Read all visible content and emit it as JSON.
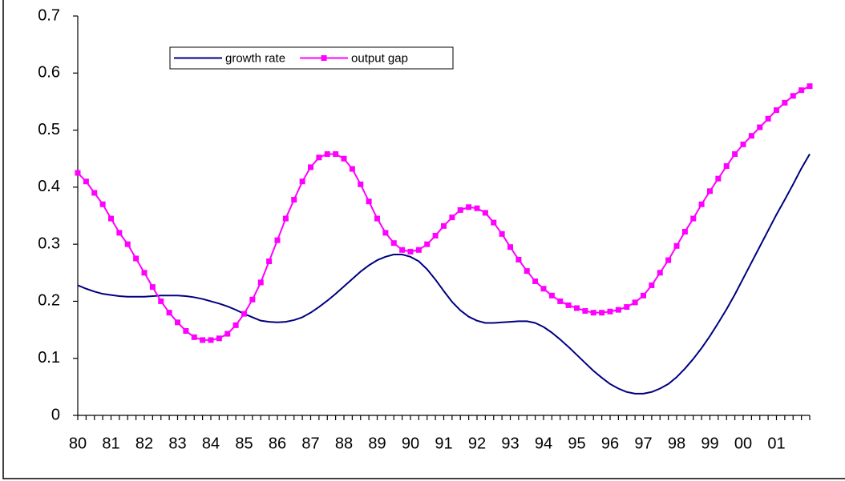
{
  "chart_data": {
    "type": "line",
    "categories": [
      "80",
      null,
      null,
      null,
      "81",
      null,
      null,
      null,
      "82",
      null,
      null,
      null,
      "83",
      null,
      null,
      null,
      "84",
      null,
      null,
      null,
      "85",
      null,
      null,
      null,
      "86",
      null,
      null,
      null,
      "87",
      null,
      null,
      null,
      "88",
      null,
      null,
      null,
      "89",
      null,
      null,
      null,
      "90",
      null,
      null,
      null,
      "91",
      null,
      null,
      null,
      "92",
      null,
      null,
      null,
      "93",
      null,
      null,
      null,
      "94",
      null,
      null,
      null,
      "95",
      null,
      null,
      null,
      "96",
      null,
      null,
      null,
      "97",
      null,
      null,
      null,
      "98",
      null,
      null,
      null,
      "99",
      null,
      null,
      null,
      "00",
      null,
      null,
      null,
      "01",
      null,
      null,
      null,
      null
    ],
    "series": [
      {
        "name": "growth rate",
        "color": "#000080",
        "marker": "none",
        "values": [
          0.228,
          0.222,
          0.217,
          0.213,
          0.211,
          0.209,
          0.208,
          0.208,
          0.208,
          0.209,
          0.21,
          0.21,
          0.21,
          0.209,
          0.207,
          0.204,
          0.2,
          0.196,
          0.191,
          0.185,
          0.178,
          0.172,
          0.166,
          0.164,
          0.163,
          0.164,
          0.167,
          0.172,
          0.18,
          0.19,
          0.201,
          0.213,
          0.226,
          0.239,
          0.252,
          0.263,
          0.272,
          0.278,
          0.282,
          0.282,
          0.278,
          0.27,
          0.256,
          0.238,
          0.218,
          0.199,
          0.184,
          0.173,
          0.166,
          0.162,
          0.162,
          0.163,
          0.164,
          0.165,
          0.165,
          0.162,
          0.155,
          0.145,
          0.133,
          0.12,
          0.106,
          0.092,
          0.078,
          0.066,
          0.055,
          0.047,
          0.041,
          0.038,
          0.038,
          0.041,
          0.047,
          0.055,
          0.067,
          0.082,
          0.099,
          0.118,
          0.139,
          0.162,
          0.186,
          0.212,
          0.24,
          0.268,
          0.296,
          0.324,
          0.352,
          0.378,
          0.405,
          0.433,
          0.458
        ]
      },
      {
        "name": "output gap",
        "color": "#ff00ff",
        "marker": "square",
        "values": [
          0.425,
          0.41,
          0.39,
          0.37,
          0.345,
          0.32,
          0.3,
          0.275,
          0.25,
          0.225,
          0.2,
          0.18,
          0.163,
          0.148,
          0.137,
          0.132,
          0.132,
          0.135,
          0.143,
          0.158,
          0.178,
          0.203,
          0.233,
          0.27,
          0.307,
          0.345,
          0.378,
          0.41,
          0.435,
          0.452,
          0.458,
          0.458,
          0.45,
          0.432,
          0.405,
          0.375,
          0.345,
          0.32,
          0.302,
          0.29,
          0.287,
          0.29,
          0.3,
          0.315,
          0.332,
          0.347,
          0.36,
          0.365,
          0.363,
          0.355,
          0.338,
          0.318,
          0.295,
          0.273,
          0.253,
          0.235,
          0.222,
          0.21,
          0.2,
          0.193,
          0.188,
          0.183,
          0.18,
          0.18,
          0.182,
          0.185,
          0.19,
          0.198,
          0.21,
          0.228,
          0.25,
          0.272,
          0.297,
          0.322,
          0.345,
          0.37,
          0.393,
          0.415,
          0.437,
          0.458,
          0.475,
          0.49,
          0.505,
          0.52,
          0.535,
          0.548,
          0.56,
          0.57,
          0.577
        ]
      }
    ],
    "ylim": [
      0,
      0.7
    ],
    "yticks": [
      0,
      0.1,
      0.2,
      0.3,
      0.4,
      0.5,
      0.6,
      0.7
    ],
    "grid": false,
    "legend": "upper left"
  }
}
